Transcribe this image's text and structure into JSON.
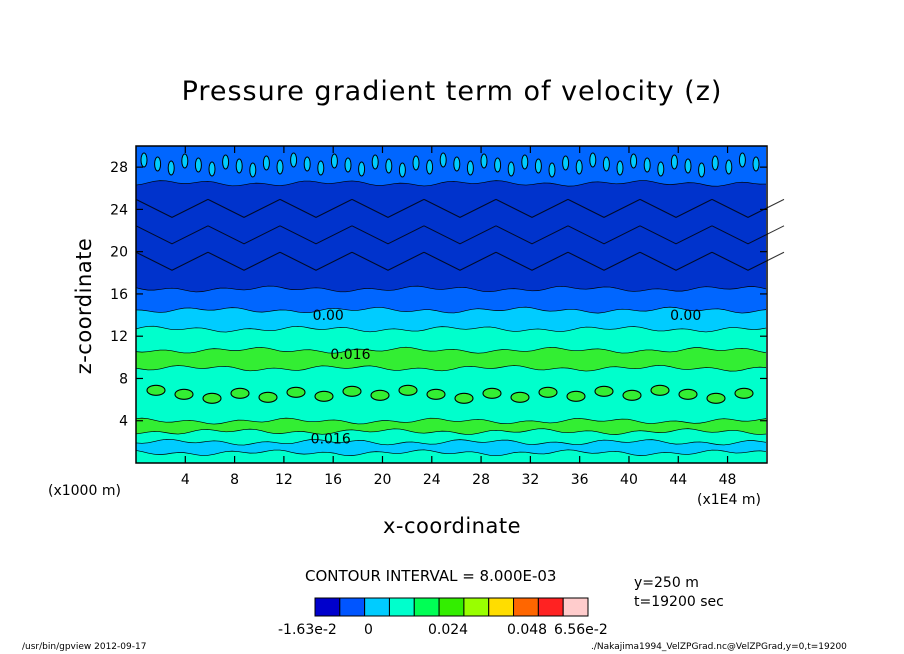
{
  "chart_data": {
    "type": "heatmap",
    "title": "Pressure gradient term of velocity (z)",
    "xlabel": "x-coordinate",
    "ylabel": "z-coordinate",
    "x_unit_left": "(x1000 m)",
    "x_unit_right": "(x1E4 m)",
    "xlim": [
      0,
      51.2
    ],
    "ylim": [
      0,
      30
    ],
    "x_ticks": [
      4,
      8,
      12,
      16,
      20,
      24,
      28,
      32,
      36,
      40,
      44,
      48
    ],
    "y_ticks": [
      4,
      8,
      12,
      16,
      20,
      24,
      28
    ],
    "contour_labels": [
      {
        "text": "0.00",
        "x": 15.6,
        "z": 14.0
      },
      {
        "text": "0.00",
        "x": 44.6,
        "z": 14.0
      },
      {
        "text": "0.016",
        "x": 17.4,
        "z": 10.3
      },
      {
        "text": "0.016",
        "x": 15.8,
        "z": 2.3
      }
    ],
    "layers": [
      {
        "zmin": 0.0,
        "zmax": 1.0,
        "color": "#00ffcc"
      },
      {
        "zmin": 1.0,
        "zmax": 2.0,
        "color": "#00ccff"
      },
      {
        "zmin": 2.0,
        "zmax": 3.0,
        "color": "#00ffcc"
      },
      {
        "zmin": 3.0,
        "zmax": 4.0,
        "color": "#33ee33"
      },
      {
        "zmin": 4.0,
        "zmax": 9.0,
        "color": "#00ffcc"
      },
      {
        "zmin": 9.0,
        "zmax": 10.7,
        "color": "#33ee33"
      },
      {
        "zmin": 10.7,
        "zmax": 12.7,
        "color": "#00ffcc"
      },
      {
        "zmin": 12.7,
        "zmax": 14.5,
        "color": "#00ccff"
      },
      {
        "zmin": 14.5,
        "zmax": 16.5,
        "color": "#0066ff"
      },
      {
        "zmin": 16.5,
        "zmax": 26.5,
        "color": "#0033cc"
      },
      {
        "zmin": 26.5,
        "zmax": 30.0,
        "color": "#0066ff"
      }
    ],
    "contour_interval": "CONTOUR INTERVAL = 8.000E-03",
    "colorbar": {
      "colors": [
        "#0000cc",
        "#0055ff",
        "#00ccff",
        "#00ffcc",
        "#00ff55",
        "#33ee00",
        "#99ff00",
        "#ffdd00",
        "#ff6600",
        "#ff2222",
        "#ffcccc"
      ],
      "labels": [
        "-1.63e-2",
        "0",
        "0.024",
        "0.048",
        "6.56e-2"
      ]
    }
  },
  "info": {
    "y": "y=250 m",
    "t": "t=19200 sec"
  },
  "footer": {
    "left": "/usr/bin/gpview  2012-09-17",
    "right": "./Nakajima1994_VelZPGrad.nc@VelZPGrad,y=0,t=19200"
  }
}
